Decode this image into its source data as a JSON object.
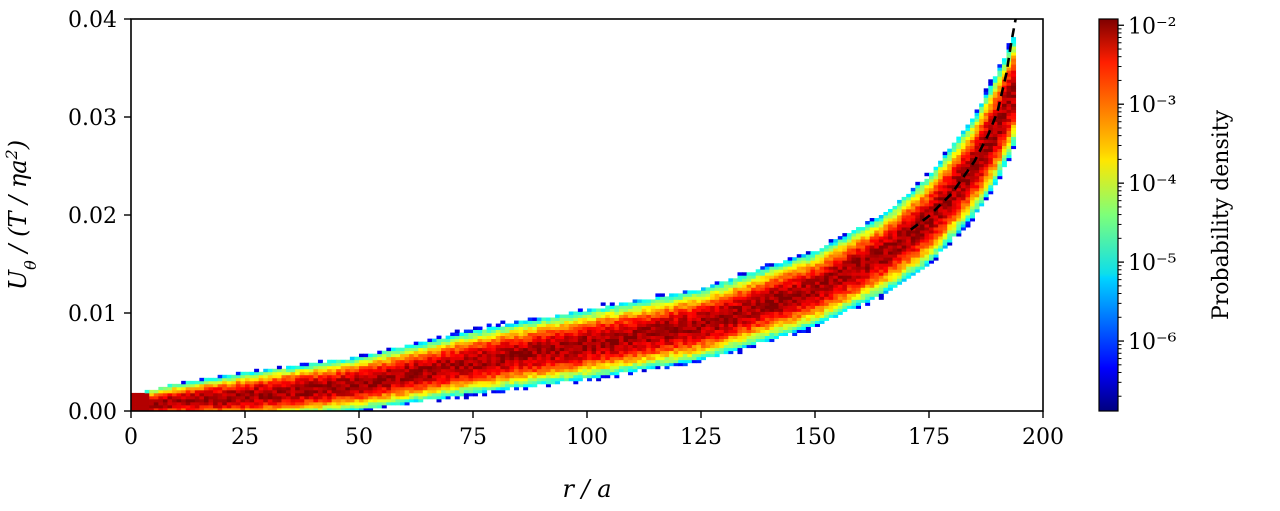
{
  "chart_data": {
    "type": "heatmap",
    "title": "",
    "xlabel": "r / a",
    "ylabel": "Uθ / (T / ηa²)",
    "xlim": [
      0,
      200
    ],
    "ylim": [
      0,
      0.04
    ],
    "x_ticks": [
      0,
      25,
      50,
      75,
      100,
      125,
      150,
      175,
      200
    ],
    "x_tick_labels": [
      "0",
      "25",
      "50",
      "75",
      "100",
      "125",
      "150",
      "175",
      "200"
    ],
    "y_ticks": [
      0.0,
      0.01,
      0.02,
      0.03,
      0.04
    ],
    "y_tick_labels": [
      "0.00",
      "0.01",
      "0.02",
      "0.03",
      "0.04"
    ],
    "grid": false,
    "colormap": "jet",
    "colorbar": {
      "label": "Probability density",
      "scale": "log",
      "range": [
        1.3e-07,
        0.012
      ],
      "ticks": [
        1e-06,
        1e-05,
        0.0001,
        0.001,
        0.01
      ],
      "tick_labels": [
        "10⁻⁶",
        "10⁻⁵",
        "10⁻⁴",
        "10⁻³",
        "10⁻²"
      ]
    },
    "density_ridge": {
      "x": [
        0,
        10,
        25,
        50,
        75,
        100,
        125,
        150,
        165,
        175,
        185,
        190,
        194
      ],
      "y_center": [
        0.0005,
        0.001,
        0.0015,
        0.0028,
        0.005,
        0.0068,
        0.0088,
        0.0125,
        0.016,
        0.0195,
        0.025,
        0.029,
        0.033
      ],
      "half_width": [
        0.0012,
        0.0018,
        0.0024,
        0.0027,
        0.0032,
        0.0035,
        0.0036,
        0.0038,
        0.004,
        0.0045,
        0.005,
        0.0055,
        0.0055
      ]
    },
    "series": [
      {
        "type": "dashed-line",
        "color": "#000000",
        "x": [
          171,
          175,
          180,
          185,
          188,
          190,
          192,
          193,
          194
        ],
        "y": [
          0.0185,
          0.0199,
          0.0222,
          0.0255,
          0.0282,
          0.0305,
          0.0345,
          0.0375,
          0.04
        ]
      }
    ]
  }
}
